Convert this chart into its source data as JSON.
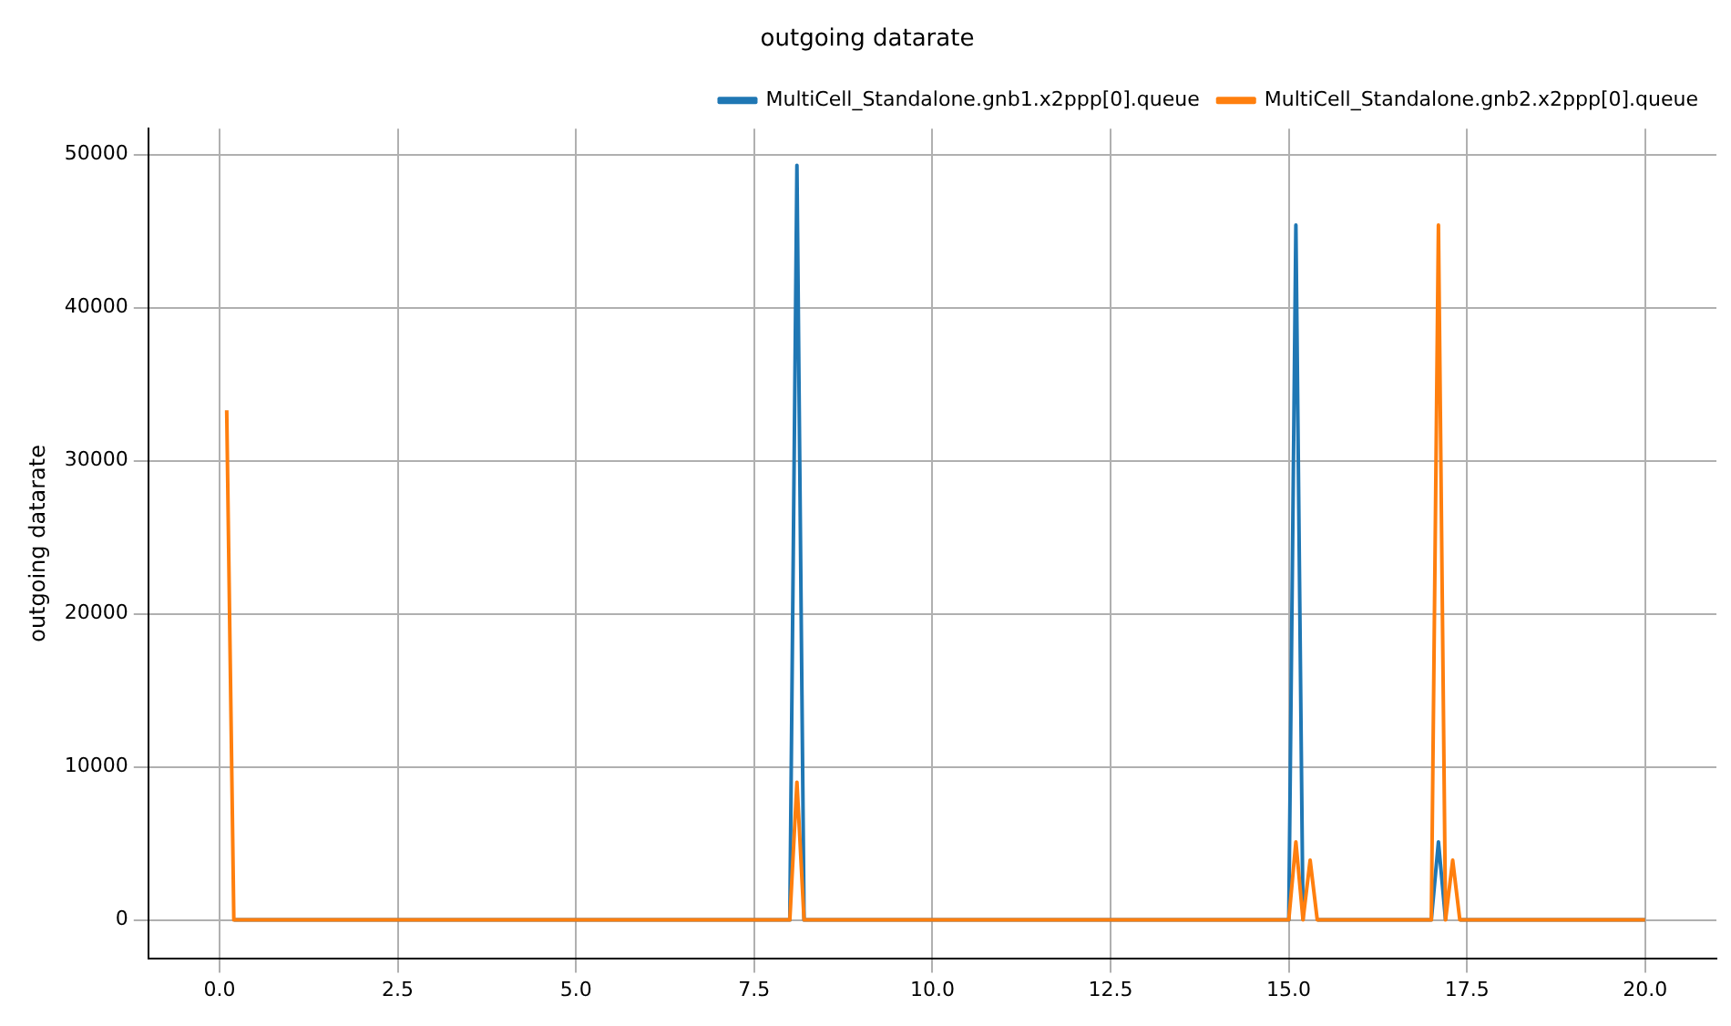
{
  "chart_data": {
    "type": "line",
    "title": "outgoing datarate",
    "ylabel": "outgoing datarate",
    "xlim": [
      -1,
      21
    ],
    "xticks": [
      {
        "value": 0,
        "label": "0.0"
      },
      {
        "value": 2.5,
        "label": "2.5"
      },
      {
        "value": 5,
        "label": "5.0"
      },
      {
        "value": 7.5,
        "label": "7.5"
      },
      {
        "value": 10,
        "label": "10.0"
      },
      {
        "value": 12.5,
        "label": "12.5"
      },
      {
        "value": 15,
        "label": "15.0"
      },
      {
        "value": 17.5,
        "label": "17.5"
      },
      {
        "value": 20,
        "label": "20.0"
      }
    ],
    "ylim": [
      -2500,
      51700
    ],
    "yticks": [
      0,
      10000,
      20000,
      30000,
      40000,
      50000
    ],
    "grid": true,
    "legend": "top right",
    "marker": "none",
    "line_style": "solid",
    "series": [
      {
        "name": "MultiCell_Standalone.gnb1.x2ppp[0].queue",
        "color": "#1f77b4",
        "x": [
          0.2,
          8.0,
          8.1,
          8.2,
          15.0,
          15.1,
          15.2,
          15.3,
          15.4,
          17.0,
          17.1,
          17.2,
          17.3,
          17.4,
          20.0
        ],
        "values": [
          0,
          0,
          49300,
          0,
          0,
          45400,
          0,
          null,
          0,
          0,
          5100,
          0,
          null,
          0,
          0
        ]
      },
      {
        "name": "MultiCell_Standalone.gnb2.x2ppp[0].queue",
        "color": "#ff7f0e",
        "x": [
          0.1,
          0.2,
          8.0,
          8.1,
          8.2,
          15.0,
          15.1,
          15.2,
          15.3,
          15.4,
          17.0,
          17.1,
          17.2,
          17.3,
          17.4,
          20.0
        ],
        "values": [
          33300,
          0,
          0,
          9000,
          0,
          0,
          5100,
          0,
          3900,
          0,
          0,
          45400,
          0,
          3900,
          0,
          0
        ]
      }
    ]
  }
}
